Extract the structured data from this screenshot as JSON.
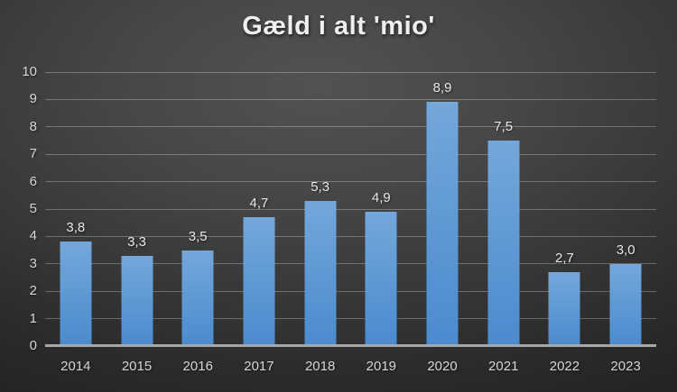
{
  "chart_data": {
    "type": "bar",
    "title": "Gæld i alt 'mio'",
    "categories": [
      "2014",
      "2015",
      "2016",
      "2017",
      "2018",
      "2019",
      "2020",
      "2021",
      "2022",
      "2023"
    ],
    "values": [
      3.8,
      3.3,
      3.5,
      4.7,
      5.3,
      4.9,
      8.9,
      7.5,
      2.7,
      3.0
    ],
    "value_labels": [
      "3,8",
      "3,3",
      "3,5",
      "4,7",
      "5,3",
      "4,9",
      "8,9",
      "7,5",
      "2,7",
      "3,0"
    ],
    "xlabel": "",
    "ylabel": "",
    "ylim": [
      0,
      10
    ],
    "yticks": [
      0,
      1,
      2,
      3,
      4,
      5,
      6,
      7,
      8,
      9,
      10
    ],
    "grid": true,
    "legend": false
  },
  "colors": {
    "background_center": "#525252",
    "background_edge": "#242424",
    "bar_gradient_top": "#74a7db",
    "bar_gradient_bottom": "#4a8bce",
    "gridline": "rgba(255,255,255,0.28)",
    "axis_line": "#a7a7a7",
    "tick_label": "#d6d6d6",
    "data_label": "#e8e8e8",
    "title": "#efefef"
  }
}
